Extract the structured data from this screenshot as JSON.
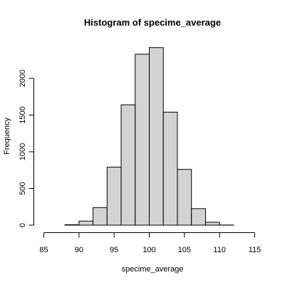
{
  "chart_data": {
    "type": "bar",
    "title": "Histogram of specime_average",
    "xlabel": "specime_average",
    "ylabel": "Frequency",
    "bins": [
      {
        "x0": 86,
        "x1": 88,
        "value": 0
      },
      {
        "x0": 88,
        "x1": 90,
        "value": 6
      },
      {
        "x0": 90,
        "x1": 92,
        "value": 55
      },
      {
        "x0": 92,
        "x1": 94,
        "value": 240
      },
      {
        "x0": 94,
        "x1": 96,
        "value": 790
      },
      {
        "x0": 96,
        "x1": 98,
        "value": 1640
      },
      {
        "x0": 98,
        "x1": 100,
        "value": 2330
      },
      {
        "x0": 100,
        "x1": 102,
        "value": 2420
      },
      {
        "x0": 102,
        "x1": 104,
        "value": 1540
      },
      {
        "x0": 104,
        "x1": 106,
        "value": 760
      },
      {
        "x0": 106,
        "x1": 108,
        "value": 225
      },
      {
        "x0": 108,
        "x1": 110,
        "value": 40
      },
      {
        "x0": 110,
        "x1": 112,
        "value": 2
      },
      {
        "x0": 112,
        "x1": 114,
        "value": 0
      }
    ],
    "xlim": [
      86,
      114
    ],
    "ylim": [
      0,
      2420
    ],
    "xticks": [
      "85",
      "90",
      "95",
      "100",
      "105",
      "110",
      "115"
    ],
    "yticks": [
      "0",
      "500",
      "1000",
      "1500",
      "2000"
    ],
    "bar_color": "#d3d3d3",
    "grid": false
  }
}
